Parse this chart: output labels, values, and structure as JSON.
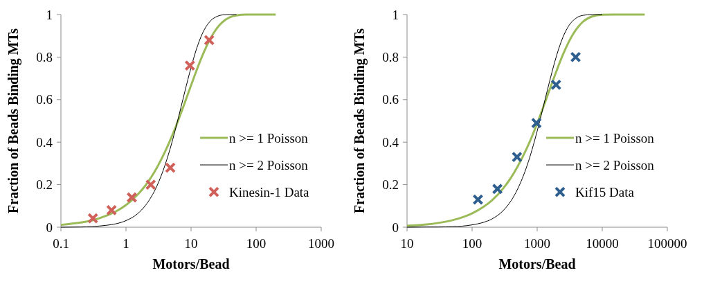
{
  "chart_data": [
    {
      "type": "line",
      "xlabel": "Motors/Bead",
      "ylabel": "Fraction of Beads Binding MTs",
      "log": "x",
      "xlim": [
        0.1,
        1000
      ],
      "xticks": [
        0.1,
        1,
        10,
        100,
        1000
      ],
      "ylim": [
        0,
        1
      ],
      "yticks": [
        0,
        0.2,
        0.4,
        0.6,
        0.8,
        1
      ],
      "grid": false,
      "legend": "right",
      "series": [
        {
          "name": "n >= 1 Poisson",
          "color": "#9bbb59",
          "marker": "none",
          "line_style": "solid",
          "x": [
            0.1,
            0.2,
            0.3,
            0.5,
            0.7,
            1,
            1.5,
            2,
            3,
            4,
            5,
            6,
            7,
            8,
            10,
            12,
            15,
            20,
            25,
            30,
            40,
            50,
            70,
            100,
            150,
            200
          ],
          "values": [
            0.011,
            0.022,
            0.032,
            0.054,
            0.074,
            0.104,
            0.152,
            0.197,
            0.281,
            0.356,
            0.423,
            0.483,
            0.537,
            0.585,
            0.667,
            0.733,
            0.808,
            0.889,
            0.936,
            0.963,
            0.988,
            0.996,
            1,
            1,
            1,
            1
          ]
        },
        {
          "name": "n >= 2 Poisson",
          "color": "#000000",
          "marker": "none",
          "line_style": "solid",
          "x": [
            0.1,
            0.2,
            0.3,
            0.5,
            0.7,
            1,
            1.5,
            2,
            3,
            4,
            5,
            6,
            7,
            8,
            10,
            12,
            15,
            20,
            25,
            30,
            40,
            50
          ],
          "values": [
            0,
            0.001,
            0.003,
            0.009,
            0.016,
            0.031,
            0.063,
            0.103,
            0.195,
            0.294,
            0.391,
            0.482,
            0.564,
            0.636,
            0.751,
            0.834,
            0.912,
            0.971,
            0.991,
            0.998,
            1,
            1
          ]
        },
        {
          "name": "Kinesin-1 Data",
          "type": "scatter",
          "color": "#d0605a",
          "marker": "cross",
          "x": [
            0.31,
            0.6,
            1.23,
            2.4,
            4.8,
            9.6,
            19
          ],
          "values": [
            0.042,
            0.08,
            0.14,
            0.2,
            0.28,
            0.76,
            0.88
          ]
        }
      ]
    },
    {
      "type": "line",
      "xlabel": "Motors/Bead",
      "ylabel": "Fraction of Beads Binding MTs",
      "log": "x",
      "xlim": [
        10,
        100000
      ],
      "xticks": [
        10,
        100,
        1000,
        10000,
        100000
      ],
      "ylim": [
        0,
        1
      ],
      "yticks": [
        0,
        0.2,
        0.4,
        0.6,
        0.8,
        1
      ],
      "grid": false,
      "legend": "right",
      "series": [
        {
          "name": "n >= 1 Poisson",
          "color": "#9bbb59",
          "marker": "none",
          "line_style": "solid",
          "x": [
            10,
            20,
            30,
            50,
            70,
            100,
            150,
            200,
            300,
            400,
            500,
            700,
            1000,
            1200,
            1500,
            2000,
            2500,
            3000,
            4000,
            5000,
            7000,
            10000,
            15000,
            20000,
            30000,
            45000
          ],
          "values": [
            0.007,
            0.013,
            0.02,
            0.033,
            0.046,
            0.065,
            0.096,
            0.125,
            0.182,
            0.235,
            0.285,
            0.374,
            0.488,
            0.552,
            0.634,
            0.738,
            0.813,
            0.866,
            0.931,
            0.965,
            0.991,
            0.999,
            1,
            1,
            1,
            1
          ]
        },
        {
          "name": "n >= 2 Poisson",
          "color": "#000000",
          "marker": "none",
          "line_style": "solid",
          "x": [
            10,
            20,
            30,
            50,
            70,
            100,
            150,
            200,
            300,
            400,
            500,
            700,
            1000,
            1200,
            1500,
            2000,
            2500,
            3000,
            4000,
            5000,
            7000,
            10000
          ],
          "values": [
            0,
            0.001,
            0.001,
            0.003,
            0.005,
            0.011,
            0.023,
            0.038,
            0.078,
            0.126,
            0.179,
            0.29,
            0.452,
            0.548,
            0.668,
            0.81,
            0.895,
            0.943,
            0.984,
            0.996,
            1,
            1
          ]
        },
        {
          "name": "Kif15 Data",
          "type": "scatter",
          "color": "#2e5f8f",
          "marker": "cross",
          "x": [
            123,
            245,
            490,
            975,
            1950,
            3900
          ],
          "values": [
            0.13,
            0.18,
            0.33,
            0.49,
            0.67,
            0.8
          ]
        }
      ]
    }
  ]
}
